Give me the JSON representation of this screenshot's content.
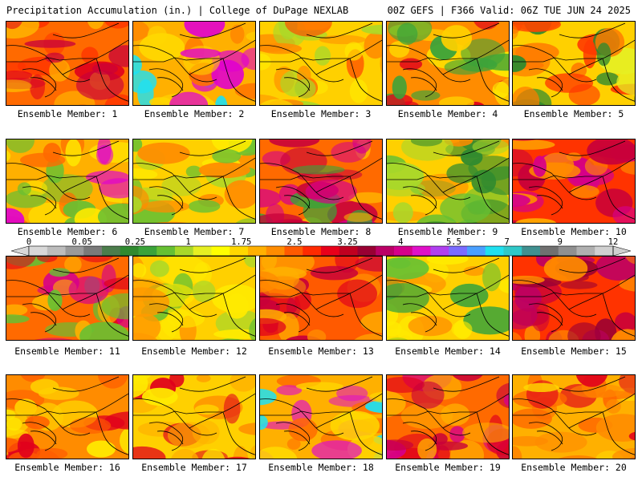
{
  "header": {
    "left": "Precipitation Accumulation (in.) | College of DuPage NEXLAB",
    "right": "00Z GEFS | F366 Valid: 06Z TUE JUN 24 2025"
  },
  "colorbar": {
    "tick_labels": [
      "0",
      "0.05",
      "0.25",
      "1",
      "1.75",
      "2.5",
      "3.25",
      "4",
      "5.5",
      "7",
      "9",
      "12"
    ],
    "colors": [
      "#d8d8d8",
      "#bcbcbc",
      "#9a9a9a",
      "#7a7a7a",
      "#4c7d4c",
      "#2f8a2f",
      "#3aa33a",
      "#66c033",
      "#a8d82a",
      "#e6ef22",
      "#ffff00",
      "#ffd700",
      "#ffb000",
      "#ff8c00",
      "#ff5a00",
      "#ff2a00",
      "#e8001a",
      "#c00020",
      "#990033",
      "#bb0066",
      "#d6008a",
      "#e010c8",
      "#b040f0",
      "#7a6cff",
      "#4aa0ff",
      "#20e0f0",
      "#30c8c8",
      "#409090",
      "#707070",
      "#909090",
      "#b0b0b0",
      "#d0d0d0"
    ]
  },
  "members": [
    {
      "label": "Ensemble Member: 1",
      "palette": [
        "#ff6a00",
        "#e0001c",
        "#ffb300",
        "#c8003a",
        "#ff3300"
      ]
    },
    {
      "label": "Ensemble Member: 2",
      "palette": [
        "#ffb000",
        "#ff7000",
        "#e000d0",
        "#ffd800",
        "#20e0f0"
      ]
    },
    {
      "label": "Ensemble Member: 3",
      "palette": [
        "#ffd000",
        "#ff8c00",
        "#a8d82a",
        "#ffea00",
        "#ff4a00"
      ]
    },
    {
      "label": "Ensemble Member: 4",
      "palette": [
        "#ff8c00",
        "#ffd000",
        "#3aa33a",
        "#e0001c",
        "#ffea00"
      ]
    },
    {
      "label": "Ensemble Member: 5",
      "palette": [
        "#ffd000",
        "#ff7a00",
        "#2f8a2f",
        "#e6ef22",
        "#ff3a00"
      ]
    },
    {
      "label": "Ensemble Member: 6",
      "palette": [
        "#ffb000",
        "#ff6a00",
        "#66c033",
        "#e000d0",
        "#ffea00"
      ]
    },
    {
      "label": "Ensemble Member: 7",
      "palette": [
        "#ffd000",
        "#ffea00",
        "#66c033",
        "#ff8c00",
        "#a8d82a"
      ]
    },
    {
      "label": "Ensemble Member: 8",
      "palette": [
        "#ff6a00",
        "#c8003a",
        "#d6008a",
        "#ffb300",
        "#3aa33a"
      ]
    },
    {
      "label": "Ensemble Member: 9",
      "palette": [
        "#ffd000",
        "#66c033",
        "#2f8a2f",
        "#ff8c00",
        "#a8d82a"
      ]
    },
    {
      "label": "Ensemble Member: 10",
      "palette": [
        "#ff3300",
        "#c8003a",
        "#d6008a",
        "#ff8c00",
        "#ffb300"
      ]
    },
    {
      "label": "Ensemble Member: 11",
      "palette": [
        "#ff6a00",
        "#e0001c",
        "#66c033",
        "#ffb000",
        "#d6008a"
      ]
    },
    {
      "label": "Ensemble Member: 12",
      "palette": [
        "#ffd000",
        "#ffea00",
        "#a8d82a",
        "#ff9a00",
        "#66c033"
      ]
    },
    {
      "label": "Ensemble Member: 13",
      "palette": [
        "#ff5a00",
        "#c8003a",
        "#ffb000",
        "#e0001c",
        "#ff8c00"
      ]
    },
    {
      "label": "Ensemble Member: 14",
      "palette": [
        "#ffd000",
        "#ff8c00",
        "#66c033",
        "#ffea00",
        "#3aa33a"
      ]
    },
    {
      "label": "Ensemble Member: 15",
      "palette": [
        "#ff3300",
        "#c8003a",
        "#990033",
        "#ff8c00",
        "#bb0066"
      ]
    },
    {
      "label": "Ensemble Member: 16",
      "palette": [
        "#ff8c00",
        "#ffd000",
        "#e0001c",
        "#ff5a00",
        "#ffea00"
      ]
    },
    {
      "label": "Ensemble Member: 17",
      "palette": [
        "#ffd000",
        "#ff8c00",
        "#ffea00",
        "#e0001c",
        "#ffb000"
      ]
    },
    {
      "label": "Ensemble Member: 18",
      "palette": [
        "#ffb000",
        "#ff6a00",
        "#e010c8",
        "#ffd800",
        "#20e0f0"
      ]
    },
    {
      "label": "Ensemble Member: 19",
      "palette": [
        "#ff6a00",
        "#c8003a",
        "#d6008a",
        "#ffb000",
        "#e0001c"
      ]
    },
    {
      "label": "Ensemble Member: 20",
      "palette": [
        "#ffb000",
        "#ff6a00",
        "#ffd800",
        "#e0001c",
        "#ff8c00"
      ]
    }
  ]
}
